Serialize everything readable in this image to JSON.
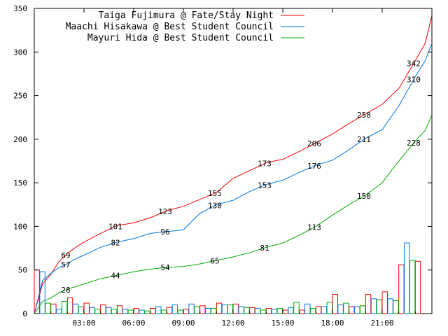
{
  "chart_data": {
    "type": "line",
    "title": "",
    "xlabel": "",
    "ylabel": "",
    "xlim": [
      0,
      24
    ],
    "ylim": [
      0,
      350
    ],
    "x_ticks": [
      "03:00",
      "06:00",
      "09:00",
      "12:00",
      "15:00",
      "18:00",
      "21:00"
    ],
    "x_tick_hours": [
      3,
      6,
      9,
      12,
      15,
      18,
      21
    ],
    "y_ticks": [
      "0",
      "50",
      "100",
      "150",
      "200",
      "250",
      "300",
      "350"
    ],
    "y_tick_values": [
      0,
      50,
      100,
      150,
      200,
      250,
      300,
      350
    ],
    "grid": false,
    "legend_position": "top-right",
    "series": [
      {
        "name": "Taiga Fujimura @ Fate/Stay Night",
        "color": "#ee0000",
        "cumulative": [
          [
            0,
            0
          ],
          [
            0.5,
            34
          ],
          [
            1,
            45
          ],
          [
            1.5,
            60
          ],
          [
            2,
            69
          ],
          [
            2.5,
            76
          ],
          [
            3,
            82
          ],
          [
            4,
            92
          ],
          [
            5,
            101
          ],
          [
            6,
            104
          ],
          [
            7,
            110
          ],
          [
            8,
            118
          ],
          [
            9,
            123
          ],
          [
            10,
            131
          ],
          [
            11,
            139
          ],
          [
            12,
            155
          ],
          [
            13,
            164
          ],
          [
            14,
            173
          ],
          [
            15,
            177
          ],
          [
            16,
            186
          ],
          [
            17,
            196
          ],
          [
            18,
            206
          ],
          [
            19,
            218
          ],
          [
            20,
            229
          ],
          [
            21,
            240
          ],
          [
            22,
            258
          ],
          [
            23,
            290
          ],
          [
            23.6,
            310
          ],
          [
            24,
            342
          ]
        ],
        "labels": [
          {
            "x": 1.9,
            "value": "69"
          },
          {
            "x": 4.9,
            "value": "101"
          },
          {
            "x": 7.9,
            "value": "123"
          },
          {
            "x": 10.9,
            "value": "155"
          },
          {
            "x": 13.9,
            "value": "173"
          },
          {
            "x": 16.9,
            "value": "206"
          },
          {
            "x": 19.9,
            "value": "258"
          },
          {
            "x": 22.9,
            "value": "342"
          }
        ],
        "hourly": [
          50,
          11,
          18,
          12,
          10,
          9,
          6,
          6,
          7,
          5,
          9,
          12,
          11,
          7,
          6,
          4,
          4,
          8,
          22,
          8,
          22,
          25,
          56,
          60
        ]
      },
      {
        "name": "Maachi Hisakawa @ Best Student Council",
        "color": "#0077dd",
        "cumulative": [
          [
            0,
            0
          ],
          [
            0.5,
            38
          ],
          [
            1,
            46
          ],
          [
            1.5,
            53
          ],
          [
            2,
            57
          ],
          [
            2.5,
            63
          ],
          [
            3,
            67
          ],
          [
            4,
            76
          ],
          [
            5,
            82
          ],
          [
            6,
            86
          ],
          [
            7,
            92
          ],
          [
            8,
            94
          ],
          [
            9,
            96
          ],
          [
            10,
            115
          ],
          [
            11,
            125
          ],
          [
            12,
            130
          ],
          [
            13,
            140
          ],
          [
            14,
            148
          ],
          [
            15,
            153
          ],
          [
            16,
            162
          ],
          [
            17,
            170
          ],
          [
            18,
            176
          ],
          [
            19,
            188
          ],
          [
            20,
            201
          ],
          [
            21,
            211
          ],
          [
            22,
            238
          ],
          [
            23,
            272
          ],
          [
            23.6,
            290
          ],
          [
            24,
            310
          ]
        ],
        "labels": [
          {
            "x": 1.9,
            "value": "57"
          },
          {
            "x": 4.9,
            "value": "82"
          },
          {
            "x": 7.9,
            "value": "96"
          },
          {
            "x": 10.9,
            "value": "130"
          },
          {
            "x": 13.9,
            "value": "153"
          },
          {
            "x": 16.9,
            "value": "176"
          },
          {
            "x": 19.9,
            "value": "211"
          },
          {
            "x": 22.9,
            "value": "310"
          }
        ],
        "hourly": [
          48,
          5,
          11,
          7,
          7,
          5,
          4,
          8,
          10,
          11,
          6,
          10,
          8,
          6,
          5,
          7,
          11,
          8,
          10,
          8,
          17,
          17,
          81,
          0
        ]
      },
      {
        "name": "Mayuri Hida @ Best Student Council",
        "color": "#00aa00",
        "cumulative": [
          [
            0,
            0
          ],
          [
            0.5,
            14
          ],
          [
            1,
            18
          ],
          [
            1.5,
            24
          ],
          [
            2,
            28
          ],
          [
            2.5,
            31
          ],
          [
            3,
            34
          ],
          [
            4,
            40
          ],
          [
            5,
            44
          ],
          [
            6,
            48
          ],
          [
            7,
            51
          ],
          [
            8,
            53
          ],
          [
            9,
            54
          ],
          [
            10,
            57
          ],
          [
            11,
            61
          ],
          [
            12,
            65
          ],
          [
            13,
            70
          ],
          [
            14,
            76
          ],
          [
            15,
            81
          ],
          [
            16,
            90
          ],
          [
            17,
            100
          ],
          [
            18,
            113
          ],
          [
            19,
            125
          ],
          [
            20,
            136
          ],
          [
            21,
            150
          ],
          [
            22,
            175
          ],
          [
            23,
            198
          ],
          [
            23.6,
            210
          ],
          [
            24,
            228
          ]
        ],
        "labels": [
          {
            "x": 1.9,
            "value": "28"
          },
          {
            "x": 4.9,
            "value": "44"
          },
          {
            "x": 7.9,
            "value": "54"
          },
          {
            "x": 10.9,
            "value": "65"
          },
          {
            "x": 13.9,
            "value": "81"
          },
          {
            "x": 16.9,
            "value": "113"
          },
          {
            "x": 19.9,
            "value": "150"
          },
          {
            "x": 22.9,
            "value": "228"
          }
        ],
        "hourly": [
          12,
          14,
          8,
          5,
          5,
          4,
          3,
          4,
          4,
          8,
          6,
          10,
          7,
          4,
          6,
          13,
          6,
          13,
          12,
          9,
          16,
          15,
          61,
          0
        ]
      }
    ]
  }
}
